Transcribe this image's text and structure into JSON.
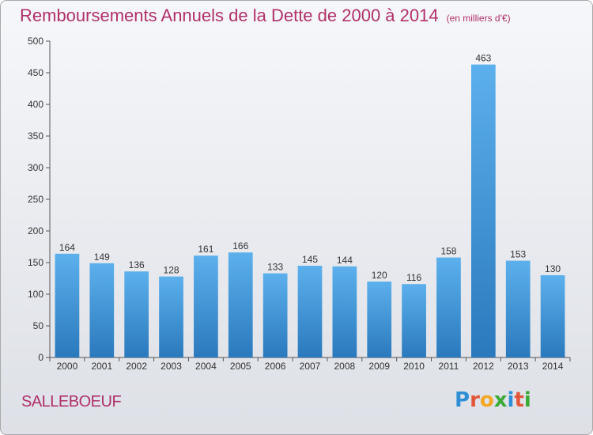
{
  "header": {
    "title": "Remboursements Annuels de la Dette de 2000 à 2014",
    "unit": "(en milliers d'€)"
  },
  "footer": {
    "commune": "SALLEBOEUF",
    "logo": "Proxiti",
    "logo_colors": [
      "#2f8fd6",
      "#e2573a",
      "#f5a623",
      "#3aaa35",
      "#2f8fd6",
      "#e2573a",
      "#3aaa35"
    ]
  },
  "chart_data": {
    "type": "bar",
    "title": "Remboursements Annuels de la Dette de 2000 à 2014",
    "subtitle": "(en milliers d'€)",
    "xlabel": "",
    "ylabel": "",
    "categories": [
      "2000",
      "2001",
      "2002",
      "2003",
      "2004",
      "2005",
      "2006",
      "2007",
      "2008",
      "2009",
      "2010",
      "2011",
      "2012",
      "2013",
      "2014"
    ],
    "values": [
      164,
      149,
      136,
      128,
      161,
      166,
      133,
      145,
      144,
      120,
      116,
      158,
      463,
      153,
      130
    ],
    "ylim": [
      0,
      500
    ],
    "yticks": [
      0,
      50,
      100,
      150,
      200,
      250,
      300,
      350,
      400,
      450,
      500
    ],
    "grid": false,
    "bar_color": "#3d94d9",
    "bar_color_light": "#5cb0ec",
    "bar_color_dark": "#2a79bd"
  }
}
